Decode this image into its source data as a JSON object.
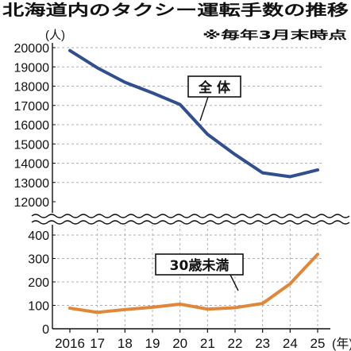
{
  "chart_data": {
    "type": "line",
    "title": "北海道内のタクシー運転手数の推移",
    "note": "※毎年3月末時点",
    "ylabel": "(人)",
    "xlabel_unit": "(年)",
    "x": [
      2016,
      2017,
      2018,
      2019,
      2020,
      2021,
      2022,
      2023,
      2024,
      2025
    ],
    "x_tick_labels": [
      "2016",
      "17",
      "18",
      "19",
      "20",
      "21",
      "22",
      "23",
      "24",
      "25"
    ],
    "axis_break": true,
    "panels": [
      {
        "name": "upper",
        "ylim": [
          12000,
          20000
        ],
        "y_ticks": [
          12000,
          13000,
          14000,
          15000,
          16000,
          17000,
          18000,
          19000,
          20000
        ]
      },
      {
        "name": "lower",
        "ylim": [
          0,
          400
        ],
        "y_ticks": [
          0,
          100,
          200,
          300,
          400
        ]
      }
    ],
    "series": [
      {
        "name": "全 体",
        "panel": "upper",
        "color": "#2f4f8f",
        "values": [
          19850,
          18950,
          18200,
          17650,
          17050,
          15500,
          14450,
          13500,
          13300,
          13650
        ]
      },
      {
        "name": "30歳未満",
        "panel": "lower",
        "color": "#e0873a",
        "values": [
          88,
          70,
          82,
          92,
          105,
          84,
          90,
          108,
          192,
          318
        ]
      }
    ]
  }
}
